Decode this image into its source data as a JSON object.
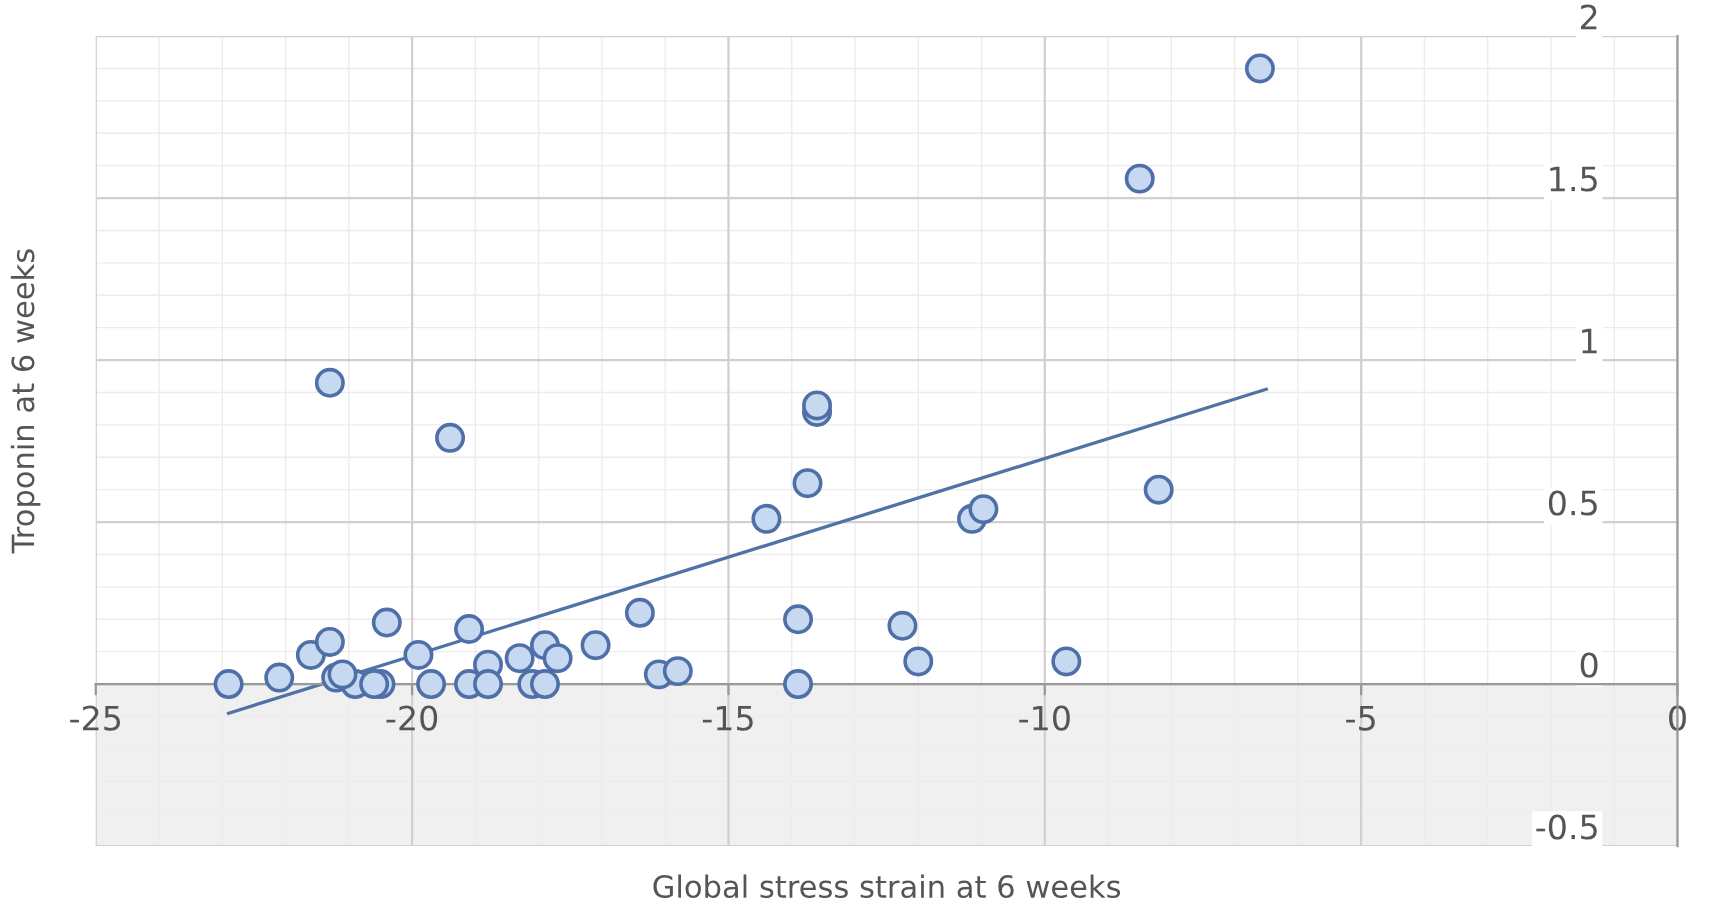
{
  "chart_data": {
    "type": "scatter",
    "xlabel": "Global stress strain at 6 weeks",
    "ylabel": "Troponin at 6 weeks",
    "xlim": [
      -25,
      0
    ],
    "ylim": [
      -0.5,
      2
    ],
    "xticks": [
      -25,
      -20,
      -15,
      -10,
      -5,
      0
    ],
    "yticks": [
      -0.5,
      0,
      0.5,
      1,
      1.5,
      2
    ],
    "grid": true,
    "marker": "circle",
    "bands": [
      {
        "axis": "y",
        "from": -0.5,
        "to": 0,
        "label": null,
        "color": "#f0f0f0"
      }
    ],
    "series": [
      {
        "color": "#c6d9f1",
        "x": [
          -22.9,
          -22.1,
          -21.6,
          -21.3,
          -21.2,
          -20.9,
          -20.5,
          -20.4,
          -19.9,
          -19.7,
          -19.4,
          -19.1,
          -19.1,
          -18.8,
          -18.8,
          -18.3,
          -17.9,
          -17.7,
          -18.1,
          -17.9,
          -17.1,
          -16.4,
          -16.1,
          -15.8,
          -14.4,
          -13.9,
          -13.9,
          -13.75,
          -13.6,
          -13.6,
          -12.25,
          -12.0,
          -11.15,
          -10.97,
          -9.66,
          -8.2,
          -8.5,
          -6.6,
          -21.3,
          -21.1,
          -20.6
        ],
        "values": [
          0.0,
          0.02,
          0.09,
          0.13,
          0.02,
          0.0,
          0.0,
          0.19,
          0.09,
          0.0,
          0.76,
          0.17,
          0.0,
          0.06,
          0.0,
          0.08,
          0.12,
          0.08,
          0.0,
          0.0,
          0.12,
          0.22,
          0.03,
          0.04,
          0.51,
          0.0,
          0.2,
          0.62,
          0.84,
          0.86,
          0.18,
          0.07,
          0.51,
          0.54,
          0.07,
          0.6,
          1.56,
          1.9,
          0.93,
          0.03,
          0.0
        ]
      },
      {
        "type": "line",
        "color": "#4f73a6",
        "x": [
          -22.9,
          -6.5
        ],
        "values": [
          -0.09,
          0.91
        ],
        "marker": "none"
      }
    ]
  }
}
